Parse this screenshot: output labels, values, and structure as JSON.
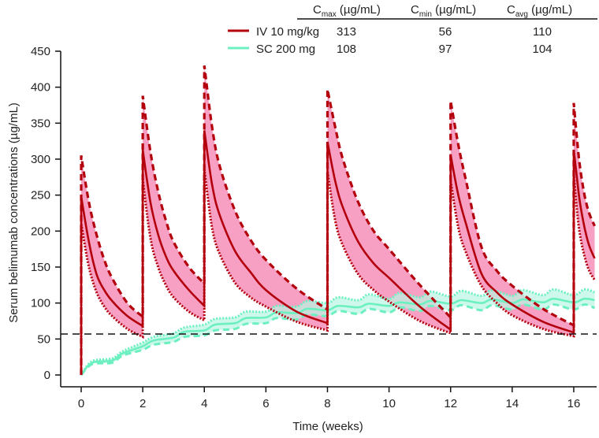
{
  "chart_data": {
    "type": "line",
    "title": "",
    "xlabel": "Time (weeks)",
    "ylabel": "Serum belimumab concentrations (µg/mL)",
    "xlim": [
      0,
      16.8
    ],
    "ylim": [
      0,
      450
    ],
    "xticks": [
      "0",
      "2",
      "4",
      "6",
      "8",
      "10",
      "12",
      "14",
      "16"
    ],
    "yticks": [
      "0",
      "50",
      "100",
      "150",
      "200",
      "250",
      "300",
      "350",
      "400",
      "450"
    ],
    "reference_line": {
      "y": 57,
      "style": "dashed",
      "color": "#111111"
    },
    "series": [
      {
        "name": "IV 10 mg/kg",
        "color": "#b3000c",
        "band_color": "#f7a0c4",
        "dose_weeks": [
          0,
          2,
          4,
          8,
          12,
          16
        ],
        "intervals": [
          {
            "start": 0,
            "t_offsets": [
              0,
              0.25,
              0.5,
              0.75,
              1,
              1.5,
              2
            ],
            "median": [
              248,
              185,
              140,
              118,
              103,
              82,
              68
            ],
            "upper": [
              305,
              240,
              195,
              160,
              135,
              100,
              81
            ],
            "lower": [
              210,
              150,
              115,
              95,
              82,
              64,
              53
            ]
          },
          {
            "start": 2,
            "t_offsets": [
              0,
              0.25,
              0.5,
              0.75,
              1,
              1.5,
              2
            ],
            "median": [
              313,
              240,
              195,
              165,
              145,
              118,
              96
            ],
            "upper": [
              388,
              310,
              255,
              215,
              185,
              150,
              127
            ],
            "lower": [
              272,
              190,
              150,
              125,
              108,
              88,
              76
            ]
          },
          {
            "start": 4,
            "t_offsets": [
              0,
              0.25,
              0.5,
              1,
              1.5,
              2,
              3,
              4
            ],
            "median": [
              340,
              265,
              222,
              172,
              143,
              118,
              88,
              72
            ],
            "upper": [
              430,
              345,
              290,
              228,
              188,
              160,
              120,
              91
            ],
            "lower": [
              285,
              205,
              168,
              128,
              108,
              95,
              74,
              62
            ]
          },
          {
            "start": 8,
            "t_offsets": [
              0,
              0.25,
              0.5,
              1,
              1.5,
              2,
              3,
              4
            ],
            "median": [
              324,
              270,
              233,
              185,
              155,
              135,
              95,
              63
            ],
            "upper": [
              397,
              345,
              300,
              240,
              200,
              175,
              125,
              80
            ],
            "lower": [
              283,
              215,
              180,
              140,
              118,
              102,
              75,
              58
            ]
          },
          {
            "start": 12,
            "t_offsets": [
              0,
              0.25,
              0.5,
              1,
              1.5,
              2,
              3,
              4
            ],
            "median": [
              306,
              250,
              210,
              141,
              115,
              98,
              74,
              59
            ],
            "upper": [
              381,
              320,
              270,
              178,
              145,
              124,
              92,
              69
            ],
            "lower": [
              270,
              205,
              170,
              124,
              100,
              83,
              64,
              54
            ]
          },
          {
            "start": 16,
            "t_offsets": [
              0,
              0.1,
              0.2,
              0.35,
              0.5,
              0.68
            ],
            "median": [
              313,
              275,
              240,
              205,
              180,
              162
            ],
            "upper": [
              378,
              330,
              290,
              250,
              225,
              207
            ],
            "lower": [
              280,
              230,
              195,
              165,
              145,
              132
            ]
          }
        ]
      },
      {
        "name": "SC 200 mg",
        "color": "#6cf0c0",
        "band_color": "#b9f5e2",
        "dose_weeks": [
          0,
          1,
          2,
          3,
          4,
          5,
          6,
          7,
          8,
          9,
          10,
          11,
          12,
          13,
          14,
          15,
          16
        ],
        "peak_offset": 0.35,
        "median_trough": [
          0,
          20,
          40,
          52,
          62,
          72,
          80,
          86,
          90,
          94,
          96,
          98,
          99,
          100,
          100,
          101,
          101
        ],
        "median_peak": [
          17,
          30,
          48,
          60,
          70,
          79,
          87,
          92,
          96,
          99,
          101,
          103,
          104,
          105,
          105,
          106,
          106
        ],
        "upper_trough": [
          0,
          23,
          45,
          58,
          70,
          80,
          88,
          95,
          100,
          104,
          106,
          108,
          109,
          110,
          110,
          111,
          111
        ],
        "upper_peak": [
          19,
          33,
          53,
          66,
          78,
          88,
          96,
          103,
          108,
          112,
          114,
          116,
          117,
          118,
          118,
          119,
          119
        ],
        "lower_trough": [
          0,
          17,
          35,
          46,
          55,
          64,
          72,
          77,
          82,
          85,
          87,
          89,
          90,
          90,
          91,
          91,
          91
        ],
        "lower_peak": [
          15,
          27,
          42,
          53,
          62,
          71,
          79,
          84,
          89,
          92,
          94,
          96,
          97,
          97,
          98,
          98,
          98
        ],
        "end": {
          "t": 16.68,
          "median": 104,
          "upper": 115,
          "lower": 93
        }
      }
    ]
  },
  "summary_table": {
    "headers": [
      {
        "symbol": "C",
        "sub": "max",
        "unit": " (µg/mL)"
      },
      {
        "symbol": "C",
        "sub": "min",
        "unit": " (µg/mL)"
      },
      {
        "symbol": "C",
        "sub": "avg",
        "unit": " (µg/mL)"
      }
    ],
    "rows": [
      {
        "label": "IV 10 mg/kg",
        "color": "#b3000c",
        "values": [
          "313",
          "56",
          "110"
        ]
      },
      {
        "label": "SC 200 mg",
        "color": "#6cf0c0",
        "values": [
          "108",
          "97",
          "104"
        ]
      }
    ]
  }
}
